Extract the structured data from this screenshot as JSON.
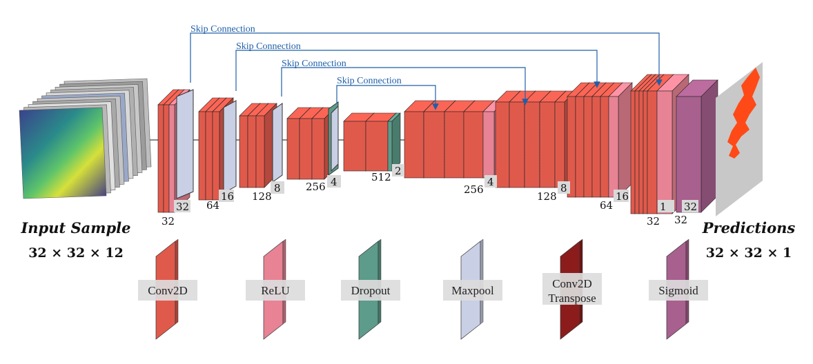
{
  "colors": {
    "conv2d": "#e05a4c",
    "relu": "#e78394",
    "dropout": "#5d9b8a",
    "maxpool": "#c9cfe4",
    "conv2d_transpose": "#8c1c1c",
    "sigmoid": "#a8608e",
    "skip_line": "#1f5fa8"
  },
  "input": {
    "title": "Input Sample",
    "shape": "32 × 32 × 12"
  },
  "output": {
    "title": "Predictions",
    "shape": "32 × 32 × 1"
  },
  "skip_connections": [
    {
      "label": "Skip Connection"
    },
    {
      "label": "Skip Connection"
    },
    {
      "label": "Skip Connection"
    },
    {
      "label": "Skip Connection"
    }
  ],
  "dimension_labels": [
    "32",
    "32",
    "64",
    "16",
    "128",
    "8",
    "256",
    "4",
    "512",
    "2",
    "256",
    "4",
    "128",
    "8",
    "64",
    "16",
    "32",
    "1",
    "32",
    "32"
  ],
  "legend": [
    {
      "label": "Conv2D",
      "color": "#e05a4c"
    },
    {
      "label": "ReLU",
      "color": "#e78394"
    },
    {
      "label": "Dropout",
      "color": "#5d9b8a"
    },
    {
      "label": "Maxpool",
      "color": "#c9cfe4"
    },
    {
      "label_lines": [
        "Conv2D",
        "Transpose"
      ],
      "color": "#8c1c1c"
    },
    {
      "label": "Sigmoid",
      "color": "#a8608e"
    }
  ]
}
